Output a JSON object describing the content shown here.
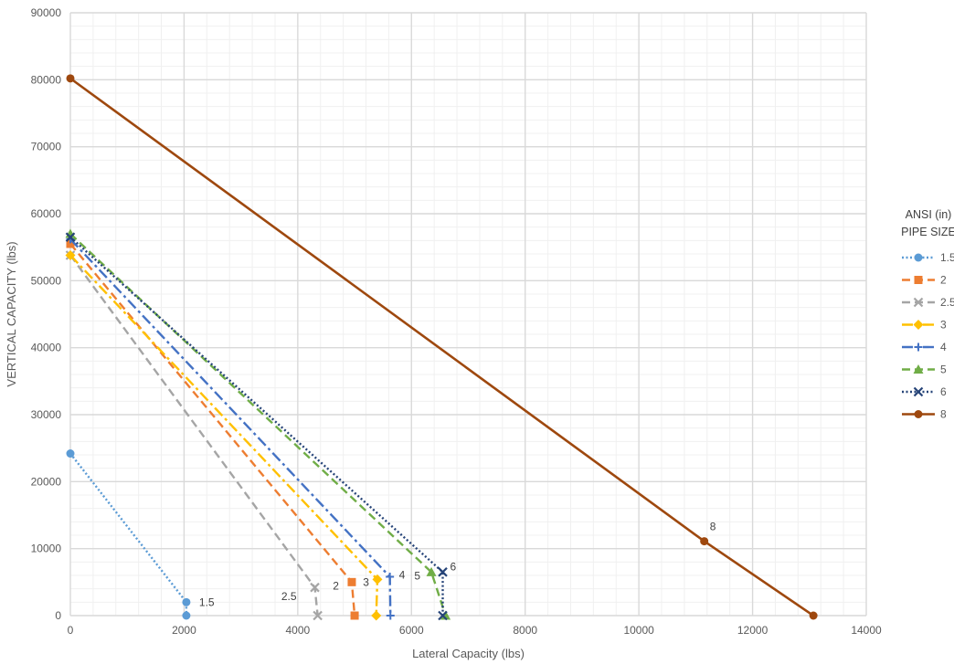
{
  "chart_data": {
    "type": "line",
    "title": "",
    "xlabel": "Lateral Capacity (lbs)",
    "ylabel": "VERTICAL CAPACITY (lbs)",
    "xlim": [
      0,
      14000
    ],
    "ylim": [
      0,
      90000
    ],
    "x_ticks": [
      "0",
      "2000",
      "4000",
      "6000",
      "8000",
      "10000",
      "12000",
      "14000"
    ],
    "y_ticks": [
      "0",
      "10000",
      "20000",
      "30000",
      "40000",
      "50000",
      "60000",
      "70000",
      "80000",
      "90000"
    ],
    "grid": true,
    "legend": {
      "title_lines": [
        "ANSI (in)",
        "PIPE SIZE"
      ],
      "position": "right"
    },
    "series": [
      {
        "name": "1.5",
        "color": "#5B9BD5",
        "dash": "dotted",
        "marker": "circle",
        "points": [
          [
            0,
            24200
          ],
          [
            2040,
            2000
          ],
          [
            2040,
            0
          ]
        ],
        "label": "1.5"
      },
      {
        "name": "2",
        "color": "#ED7D31",
        "dash": "dash",
        "marker": "square",
        "points": [
          [
            0,
            55500
          ],
          [
            4950,
            5000
          ],
          [
            5000,
            0
          ]
        ],
        "label": "2"
      },
      {
        "name": "2.5",
        "color": "#A5A5A5",
        "dash": "dash",
        "marker": "x",
        "points": [
          [
            0,
            53800
          ],
          [
            4300,
            4200
          ],
          [
            4350,
            0
          ]
        ],
        "label": "2.5"
      },
      {
        "name": "3",
        "color": "#FFC000",
        "dash": "dashdot",
        "marker": "diamond",
        "points": [
          [
            0,
            53800
          ],
          [
            5400,
            5400
          ],
          [
            5380,
            0
          ]
        ],
        "label": "3"
      },
      {
        "name": "4",
        "color": "#4472C4",
        "dash": "dashdot",
        "marker": "plus",
        "points": [
          [
            0,
            56200
          ],
          [
            5620,
            5800
          ],
          [
            5630,
            0
          ]
        ],
        "label": "4"
      },
      {
        "name": "5",
        "color": "#70AD47",
        "dash": "dash",
        "marker": "triangle",
        "points": [
          [
            0,
            57000
          ],
          [
            6350,
            6500
          ],
          [
            6600,
            0
          ]
        ],
        "label": "5"
      },
      {
        "name": "6",
        "color": "#264478",
        "dash": "dotted",
        "marker": "x",
        "points": [
          [
            0,
            56500
          ],
          [
            6550,
            6500
          ],
          [
            6550,
            0
          ]
        ],
        "label": "6"
      },
      {
        "name": "8",
        "color": "#9E480E",
        "dash": "solid",
        "marker": "circle",
        "points": [
          [
            0,
            80200
          ],
          [
            11150,
            11100
          ],
          [
            13070,
            0
          ]
        ],
        "label": "8"
      }
    ]
  }
}
